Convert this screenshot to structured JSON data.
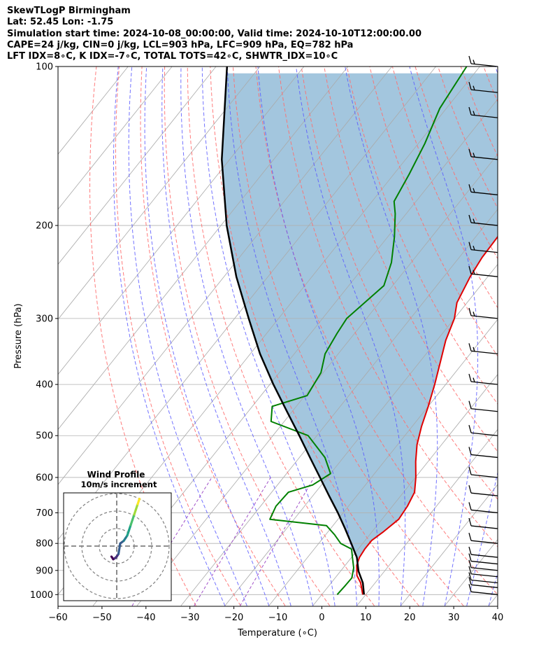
{
  "header": {
    "title": "SkewTLogP Birmingham",
    "location": "Lat: 52.45   Lon: -1.75",
    "times": "Simulation start time: 2024-10-08_00:00:00, Valid time: 2024-10-10T12:00:00.00",
    "indices1": "CAPE=24 j/kg, CIN=0 j/kg, LCL=903 hPa, LFC=909 hPa, EQ=782 hPa",
    "indices2": "LFT IDX=8∘C, K IDX=-7∘C, TOTAL TOTS=42∘C, SHWTR_IDX=10∘C"
  },
  "chart_data": {
    "type": "line",
    "subtype": "skew-T log-P",
    "xlabel": "Temperature (∘C)",
    "ylabel": "Pressure (hPa)",
    "xlim": [
      -60,
      40
    ],
    "ylim": [
      1050,
      100
    ],
    "y_scale": "log",
    "x_ticks": [
      -60,
      -50,
      -40,
      -30,
      -20,
      -10,
      0,
      10,
      20,
      30,
      40
    ],
    "x_tick_labels": [
      "−60",
      "−50",
      "−40",
      "−30",
      "−20",
      "−10",
      "0",
      "10",
      "20",
      "30",
      "40"
    ],
    "y_ticks": [
      1000,
      900,
      800,
      700,
      600,
      500,
      400,
      300,
      200,
      100
    ],
    "y_tick_labels": [
      "1000",
      "900",
      "800",
      "700",
      "600",
      "500",
      "400",
      "300",
      "200",
      "100"
    ],
    "grid": true,
    "colors": {
      "temperature": "#e00000",
      "dewpoint": "#008000",
      "parcel": "#000000",
      "cape_fill": "#a3c6de",
      "dry_adiabat": "#ff6e6e",
      "moist_adiabat": "#5a5aff",
      "mixing_ratio": "#a050c8",
      "isotherm": "#aaaaaa"
    },
    "series": [
      {
        "key": "temperature",
        "points": [
          [
            1000,
            9.3
          ],
          [
            950,
            6.7
          ],
          [
            920,
            4.5
          ],
          [
            880,
            2.6
          ],
          [
            850,
            1.8
          ],
          [
            820,
            1.5
          ],
          [
            790,
            1.5
          ],
          [
            760,
            2.6
          ],
          [
            720,
            3.8
          ],
          [
            680,
            3.4
          ],
          [
            640,
            2.5
          ],
          [
            600,
            0.1
          ],
          [
            560,
            -2.8
          ],
          [
            520,
            -5.6
          ],
          [
            480,
            -7.9
          ],
          [
            440,
            -10.0
          ],
          [
            400,
            -12.5
          ],
          [
            360,
            -15.5
          ],
          [
            330,
            -18.0
          ],
          [
            300,
            -20.0
          ],
          [
            280,
            -22.3
          ],
          [
            250,
            -24.0
          ],
          [
            230,
            -24.8
          ],
          [
            210,
            -25.0
          ],
          [
            190,
            -25.8
          ],
          [
            170,
            -26.2
          ],
          [
            150,
            -26.0
          ],
          [
            140,
            -23.5
          ],
          [
            130,
            -21.0
          ],
          [
            120,
            -18.5
          ],
          [
            110,
            -16.8
          ],
          [
            100,
            -17.2
          ]
        ]
      },
      {
        "key": "dewpoint",
        "points": [
          [
            1000,
            3.5
          ],
          [
            960,
            3.7
          ],
          [
            930,
            3.8
          ],
          [
            890,
            2.4
          ],
          [
            850,
            0.2
          ],
          [
            820,
            -1.5
          ],
          [
            800,
            -5.0
          ],
          [
            770,
            -8.0
          ],
          [
            740,
            -11.5
          ],
          [
            720,
            -25.5
          ],
          [
            680,
            -26.5
          ],
          [
            640,
            -26.2
          ],
          [
            620,
            -22.0
          ],
          [
            590,
            -20.0
          ],
          [
            550,
            -24.2
          ],
          [
            500,
            -32.0
          ],
          [
            470,
            -43.0
          ],
          [
            440,
            -45.5
          ],
          [
            420,
            -39.5
          ],
          [
            380,
            -40.5
          ],
          [
            350,
            -43.0
          ],
          [
            320,
            -44.0
          ],
          [
            300,
            -44.5
          ],
          [
            260,
            -42.0
          ],
          [
            235,
            -44.5
          ],
          [
            210,
            -48.5
          ],
          [
            190,
            -52.5
          ],
          [
            180,
            -55.0
          ],
          [
            160,
            -56.5
          ],
          [
            140,
            -58.5
          ],
          [
            120,
            -61.5
          ],
          [
            100,
            -63.0
          ]
        ]
      },
      {
        "key": "parcel",
        "points": [
          [
            1000,
            9.6
          ],
          [
            950,
            7.2
          ],
          [
            903,
            4.1
          ],
          [
            850,
            1.2
          ],
          [
            800,
            -2.6
          ],
          [
            750,
            -6.7
          ],
          [
            700,
            -11.2
          ],
          [
            650,
            -16.3
          ],
          [
            600,
            -21.7
          ],
          [
            550,
            -27.6
          ],
          [
            500,
            -34.0
          ],
          [
            450,
            -41.2
          ],
          [
            400,
            -49.2
          ],
          [
            350,
            -57.8
          ],
          [
            300,
            -66.8
          ],
          [
            250,
            -77.2
          ],
          [
            200,
            -88.7
          ],
          [
            150,
            -101.8
          ],
          [
            100,
            -117.5
          ]
        ]
      }
    ],
    "cape_region": "shaded area between parcel and temperature profiles from 903 hPa to 100 hPa",
    "wind_barbs": {
      "pressures": [
        1000,
        970,
        950,
        925,
        900,
        875,
        850,
        800,
        750,
        700,
        650,
        600,
        550,
        500,
        450,
        400,
        350,
        300,
        250,
        225,
        200,
        175,
        150,
        125,
        112,
        100
      ],
      "speed_kt": [
        10,
        10,
        10,
        10,
        10,
        10,
        10,
        10,
        10,
        10,
        10,
        10,
        10,
        10,
        10,
        15,
        15,
        15,
        15,
        15,
        15,
        15,
        15,
        15,
        15,
        15
      ]
    },
    "inset": {
      "title": "Wind Profile",
      "subtitle": "10m/s increment",
      "rings_ms": [
        10,
        20,
        30
      ],
      "hodograph_uv": [
        [
          -3,
          -2
        ],
        [
          -2,
          -2.5
        ],
        [
          -1,
          -2.3
        ],
        [
          0,
          -2
        ],
        [
          1,
          -1.5
        ],
        [
          2,
          0.5
        ],
        [
          4,
          1
        ],
        [
          5,
          1.5
        ],
        [
          6,
          2
        ],
        [
          7,
          3
        ],
        [
          8,
          4
        ],
        [
          9,
          5
        ],
        [
          10,
          6
        ],
        [
          11,
          7
        ],
        [
          12,
          8
        ],
        [
          13,
          9
        ]
      ]
    }
  }
}
